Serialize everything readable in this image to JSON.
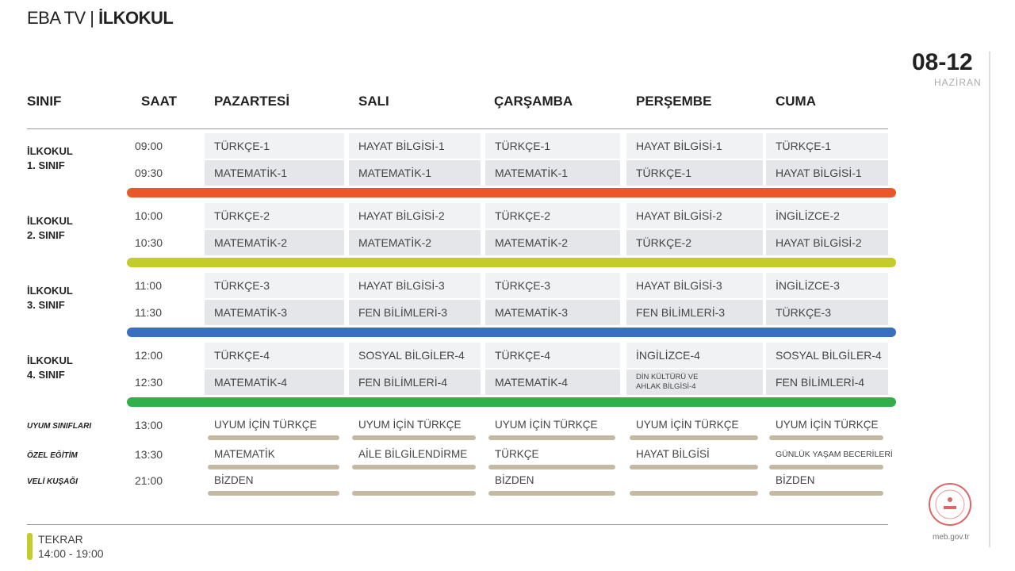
{
  "header": {
    "brand": "EBA TV",
    "section": "İLKOKUL",
    "dates": "08-12",
    "month": "HAZİRAN"
  },
  "columns": [
    "SINIF",
    "SAAT",
    "PAZARTESİ",
    "SALI",
    "ÇARŞAMBA",
    "PERŞEMBE",
    "CUMA"
  ],
  "groups": [
    {
      "name": [
        "İLKOKUL",
        "1. SINIF"
      ],
      "color": "#e8582a",
      "rows": [
        {
          "time": "09:00",
          "cells": [
            "TÜRKÇE-1",
            "HAYAT BİLGİSİ-1",
            "TÜRKÇE-1",
            "HAYAT BİLGİSİ-1",
            "TÜRKÇE-1"
          ]
        },
        {
          "time": "09:30",
          "cells": [
            "MATEMATİK-1",
            "MATEMATİK-1",
            "MATEMATİK-1",
            "TÜRKÇE-1",
            "HAYAT BİLGİSİ-1"
          ]
        }
      ]
    },
    {
      "name": [
        "İLKOKUL",
        "2. SINIF"
      ],
      "color": "#c3cc2a",
      "rows": [
        {
          "time": "10:00",
          "cells": [
            "TÜRKÇE-2",
            "HAYAT BİLGİSİ-2",
            "TÜRKÇE-2",
            "HAYAT BİLGİSİ-2",
            "İNGİLİZCE-2"
          ]
        },
        {
          "time": "10:30",
          "cells": [
            "MATEMATİK-2",
            "MATEMATİK-2",
            "MATEMATİK-2",
            "TÜRKÇE-2",
            "HAYAT BİLGİSİ-2"
          ]
        }
      ]
    },
    {
      "name": [
        "İLKOKUL",
        "3. SINIF"
      ],
      "color": "#3a6fc0",
      "rows": [
        {
          "time": "11:00",
          "cells": [
            "TÜRKÇE-3",
            "HAYAT BİLGİSİ-3",
            "TÜRKÇE-3",
            "HAYAT BİLGİSİ-3",
            "İNGİLİZCE-3"
          ]
        },
        {
          "time": "11:30",
          "cells": [
            "MATEMATİK-3",
            "FEN BİLİMLERİ-3",
            "MATEMATİK-3",
            "FEN BİLİMLERİ-3",
            "TÜRKÇE-3"
          ]
        }
      ]
    },
    {
      "name": [
        "İLKOKUL",
        "4. SINIF"
      ],
      "color": "#2fb04a",
      "rows": [
        {
          "time": "12:00",
          "cells": [
            "TÜRKÇE-4",
            "SOSYAL BİLGİLER-4",
            "TÜRKÇE-4",
            "İNGİLİZCE-4",
            "SOSYAL BİLGİLER-4"
          ]
        },
        {
          "time": "12:30",
          "cells": [
            "MATEMATİK-4",
            "FEN BİLİMLERİ-4",
            "MATEMATİK-4",
            "DİN KÜLTÜRÜ VE AHLAK BİLGİSİ-4",
            "FEN BİLİMLERİ-4"
          ]
        }
      ]
    }
  ],
  "extra": [
    {
      "label": "UYUM SINIFLARI",
      "time": "13:00",
      "cells": [
        "UYUM İÇİN TÜRKÇE",
        "UYUM İÇİN TÜRKÇE",
        "UYUM İÇİN TÜRKÇE",
        "UYUM İÇİN TÜRKÇE",
        "UYUM İÇİN TÜRKÇE"
      ]
    },
    {
      "label": "ÖZEL EĞİTİM",
      "time": "13:30",
      "cells": [
        "MATEMATİK",
        "AİLE BİLGİLENDİRME",
        "TÜRKÇE",
        "HAYAT BİLGİSİ",
        "GÜNLÜK YAŞAM BECERİLERİ"
      ]
    },
    {
      "label": "VELİ KUŞAĞI",
      "time": "21:00",
      "cells": [
        "BİZDEN",
        "",
        "BİZDEN",
        "",
        "BİZDEN"
      ]
    }
  ],
  "footer": {
    "repeat_label": "TEKRAR",
    "repeat_time": "14:00 - 19:00",
    "repeat_color": "#c3cc2a",
    "site": "meb.gov.tr"
  }
}
